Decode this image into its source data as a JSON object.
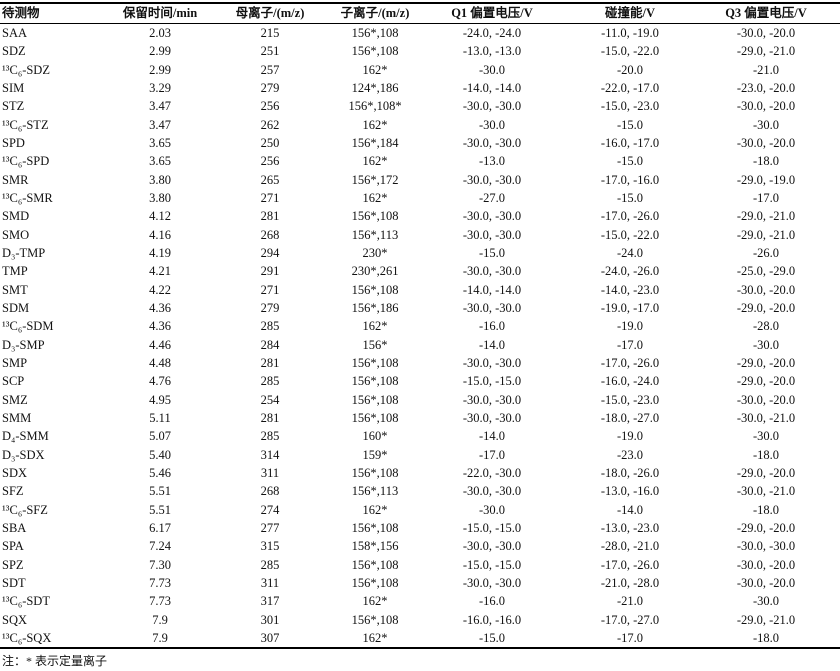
{
  "table": {
    "header": [
      "待测物",
      "保留时间/min",
      "母离子/(m/z)",
      "子离子/(m/z)",
      "Q1 偏置电压/V",
      "碰撞能/V",
      "Q3 偏置电压/V"
    ],
    "rows": [
      [
        "SAA",
        "2.03",
        "215",
        "156*,108",
        "-24.0, -24.0",
        "-11.0, -19.0",
        "-30.0, -20.0"
      ],
      [
        "SDZ",
        "2.99",
        "251",
        "156*,108",
        "-13.0, -13.0",
        "-15.0, -22.0",
        "-29.0, -21.0"
      ],
      [
        "¹³C₆-SDZ",
        "2.99",
        "257",
        "162*",
        "-30.0",
        "-20.0",
        "-21.0"
      ],
      [
        "SIM",
        "3.29",
        "279",
        "124*,186",
        "-14.0, -14.0",
        "-22.0, -17.0",
        "-23.0, -20.0"
      ],
      [
        "STZ",
        "3.47",
        "256",
        "156*,108*",
        "-30.0, -30.0",
        "-15.0, -23.0",
        "-30.0, -20.0"
      ],
      [
        "¹³C₆-STZ",
        "3.47",
        "262",
        "162*",
        "-30.0",
        "-15.0",
        "-30.0"
      ],
      [
        "SPD",
        "3.65",
        "250",
        "156*,184",
        "-30.0, -30.0",
        "-16.0, -17.0",
        "-30.0, -20.0"
      ],
      [
        "¹³C₆-SPD",
        "3.65",
        "256",
        "162*",
        "-13.0",
        "-15.0",
        "-18.0"
      ],
      [
        "SMR",
        "3.80",
        "265",
        "156*,172",
        "-30.0, -30.0",
        "-17.0, -16.0",
        "-29.0, -19.0"
      ],
      [
        "¹³C₆-SMR",
        "3.80",
        "271",
        "162*",
        "-27.0",
        "-15.0",
        "-17.0"
      ],
      [
        "SMD",
        "4.12",
        "281",
        "156*,108",
        "-30.0, -30.0",
        "-17.0, -26.0",
        "-29.0, -21.0"
      ],
      [
        "SMO",
        "4.16",
        "268",
        "156*,113",
        "-30.0, -30.0",
        "-15.0, -22.0",
        "-29.0, -21.0"
      ],
      [
        "D₃-TMP",
        "4.19",
        "294",
        "230*",
        "-15.0",
        "-24.0",
        "-26.0"
      ],
      [
        "TMP",
        "4.21",
        "291",
        "230*,261",
        "-30.0, -30.0",
        "-24.0, -26.0",
        "-25.0, -29.0"
      ],
      [
        "SMT",
        "4.22",
        "271",
        "156*,108",
        "-14.0, -14.0",
        "-14.0, -23.0",
        "-30.0, -20.0"
      ],
      [
        "SDM",
        "4.36",
        "279",
        "156*,186",
        "-30.0, -30.0",
        "-19.0, -17.0",
        "-29.0, -20.0"
      ],
      [
        "¹³C₆-SDM",
        "4.36",
        "285",
        "162*",
        "-16.0",
        "-19.0",
        "-28.0"
      ],
      [
        "D₃-SMP",
        "4.46",
        "284",
        "156*",
        "-14.0",
        "-17.0",
        "-30.0"
      ],
      [
        "SMP",
        "4.48",
        "281",
        "156*,108",
        "-30.0, -30.0",
        "-17.0, -26.0",
        "-29.0, -20.0"
      ],
      [
        "SCP",
        "4.76",
        "285",
        "156*,108",
        "-15.0, -15.0",
        "-16.0, -24.0",
        "-29.0, -20.0"
      ],
      [
        "SMZ",
        "4.95",
        "254",
        "156*,108",
        "-30.0, -30.0",
        "-15.0, -23.0",
        "-30.0, -20.0"
      ],
      [
        "SMM",
        "5.11",
        "281",
        "156*,108",
        "-30.0, -30.0",
        "-18.0, -27.0",
        "-30.0, -21.0"
      ],
      [
        "D₄-SMM",
        "5.07",
        "285",
        "160*",
        "-14.0",
        "-19.0",
        "-30.0"
      ],
      [
        "D₃-SDX",
        "5.40",
        "314",
        "159*",
        "-17.0",
        "-23.0",
        "-18.0"
      ],
      [
        "SDX",
        "5.46",
        "311",
        "156*,108",
        "-22.0, -30.0",
        "-18.0, -26.0",
        "-29.0, -20.0"
      ],
      [
        "SFZ",
        "5.51",
        "268",
        "156*,113",
        "-30.0, -30.0",
        "-13.0, -16.0",
        "-30.0, -21.0"
      ],
      [
        "¹³C₆-SFZ",
        "5.51",
        "274",
        "162*",
        "-30.0",
        "-14.0",
        "-18.0"
      ],
      [
        "SBA",
        "6.17",
        "277",
        "156*,108",
        "-15.0, -15.0",
        "-13.0, -23.0",
        "-29.0, -20.0"
      ],
      [
        "SPA",
        "7.24",
        "315",
        "158*,156",
        "-30.0, -30.0",
        "-28.0, -21.0",
        "-30.0, -30.0"
      ],
      [
        "SPZ",
        "7.30",
        "285",
        "156*,108",
        "-15.0, -15.0",
        "-17.0, -26.0",
        "-30.0, -20.0"
      ],
      [
        "SDT",
        "7.73",
        "311",
        "156*,108",
        "-30.0, -30.0",
        "-21.0, -28.0",
        "-30.0, -20.0"
      ],
      [
        "¹³C₆-SDT",
        "7.73",
        "317",
        "162*",
        "-16.0",
        "-21.0",
        "-30.0"
      ],
      [
        "SQX",
        "7.9",
        "301",
        "156*,108",
        "-16.0, -16.0",
        "-17.0, -27.0",
        "-29.0, -21.0"
      ],
      [
        "¹³C₆-SQX",
        "7.9",
        "307",
        "162*",
        "-15.0",
        "-17.0",
        "-18.0"
      ]
    ]
  },
  "footnote": "注：* 表示定量离子"
}
